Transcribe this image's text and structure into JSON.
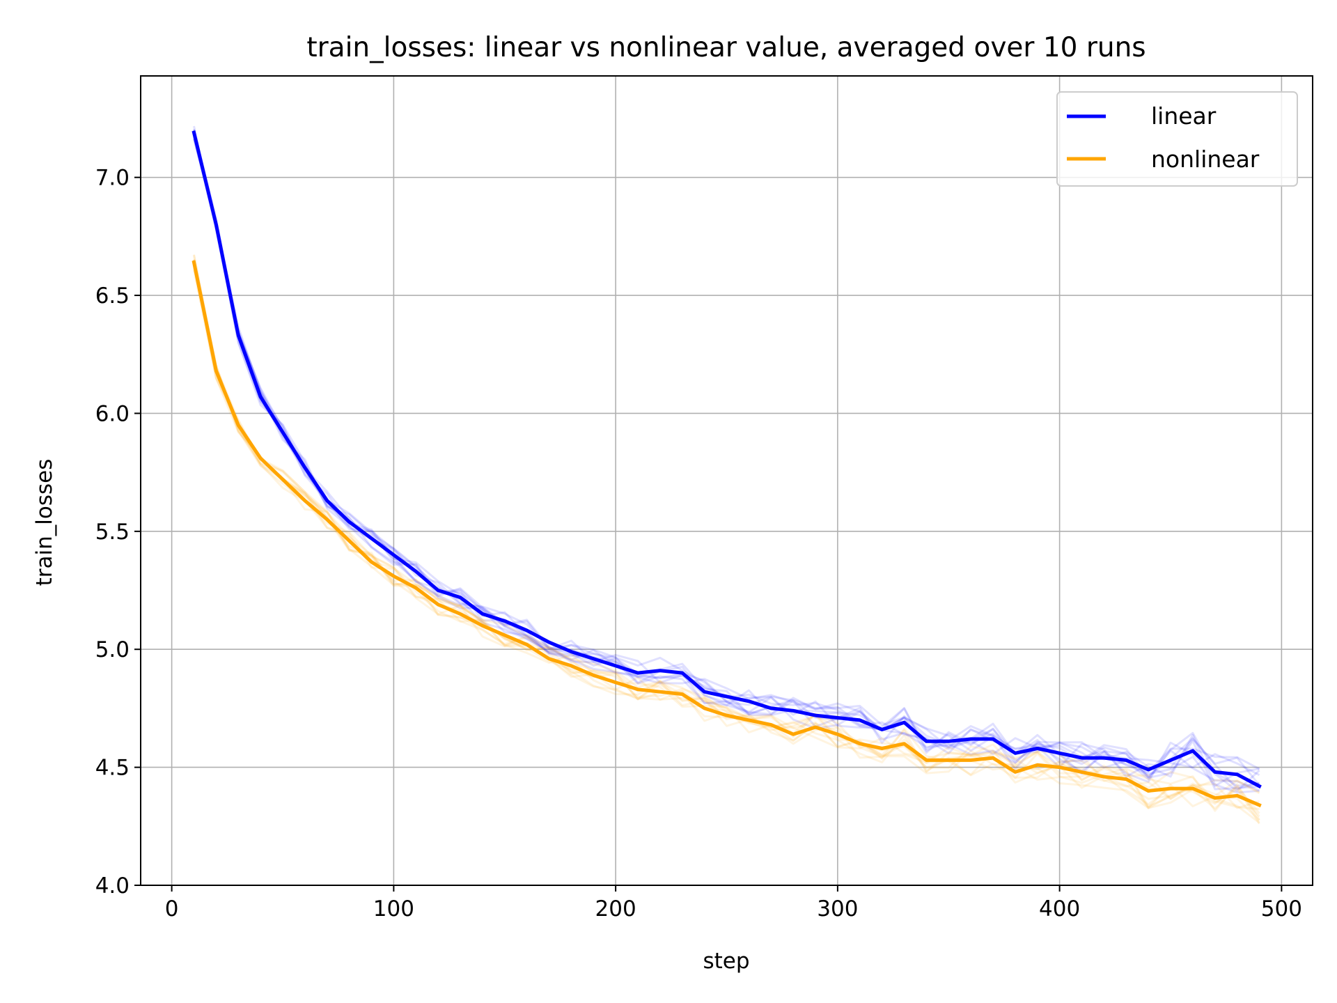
{
  "chart_data": {
    "type": "line",
    "title": "train_losses: linear vs nonlinear value, averaged over 10 runs",
    "xlabel": "step",
    "ylabel": "train_losses",
    "xlim": [
      -14,
      514
    ],
    "ylim": [
      4.0,
      7.43
    ],
    "x_ticks": [
      0,
      100,
      200,
      300,
      400,
      500
    ],
    "x_tick_labels": [
      "0",
      "100",
      "200",
      "300",
      "400",
      "500"
    ],
    "y_ticks": [
      4.0,
      4.5,
      5.0,
      5.5,
      6.0,
      6.5,
      7.0
    ],
    "y_tick_labels": [
      "4.0",
      "4.5",
      "5.0",
      "5.5",
      "6.0",
      "6.5",
      "7.0"
    ],
    "grid": true,
    "legend_position": "upper right",
    "x": [
      10,
      20,
      30,
      40,
      50,
      60,
      70,
      80,
      90,
      100,
      110,
      120,
      130,
      140,
      150,
      160,
      170,
      180,
      190,
      200,
      210,
      220,
      230,
      240,
      250,
      260,
      270,
      280,
      290,
      300,
      310,
      320,
      330,
      340,
      350,
      360,
      370,
      380,
      390,
      400,
      410,
      420,
      430,
      440,
      450,
      460,
      470,
      480,
      490
    ],
    "series": [
      {
        "name": "linear",
        "color": "#0000ff",
        "values": [
          7.19,
          6.8,
          6.33,
          6.07,
          5.92,
          5.77,
          5.63,
          5.54,
          5.47,
          5.4,
          5.33,
          5.25,
          5.22,
          5.15,
          5.12,
          5.08,
          5.03,
          4.99,
          4.96,
          4.93,
          4.9,
          4.91,
          4.9,
          4.82,
          4.8,
          4.78,
          4.75,
          4.74,
          4.72,
          4.71,
          4.7,
          4.66,
          4.69,
          4.61,
          4.61,
          4.62,
          4.62,
          4.56,
          4.58,
          4.56,
          4.54,
          4.54,
          4.53,
          4.49,
          4.53,
          4.57,
          4.48,
          4.47,
          4.42
        ]
      },
      {
        "name": "nonlinear",
        "color": "#ffa500",
        "values": [
          6.64,
          6.18,
          5.95,
          5.81,
          5.72,
          5.63,
          5.55,
          5.46,
          5.37,
          5.31,
          5.26,
          5.19,
          5.15,
          5.1,
          5.06,
          5.02,
          4.96,
          4.93,
          4.89,
          4.86,
          4.83,
          4.82,
          4.81,
          4.75,
          4.72,
          4.7,
          4.68,
          4.64,
          4.67,
          4.64,
          4.6,
          4.58,
          4.6,
          4.53,
          4.53,
          4.53,
          4.54,
          4.48,
          4.51,
          4.5,
          4.48,
          4.46,
          4.45,
          4.4,
          4.41,
          4.41,
          4.37,
          4.38,
          4.34
        ]
      }
    ],
    "faint_runs_per_series": 10
  }
}
